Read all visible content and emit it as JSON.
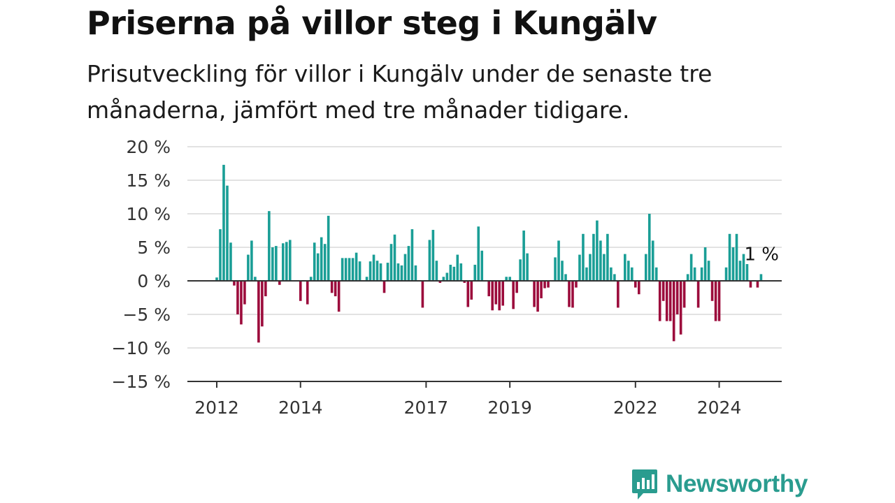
{
  "header": {
    "title": "Priserna på villor steg i Kungälv",
    "subtitle": "Prisutveckling för villor i Kungälv under de senaste tre månaderna, jämfört med tre månader tidigare."
  },
  "colors": {
    "positive": "#1a9e96",
    "negative": "#9c0c3c",
    "grid": "#d9d9d9",
    "axis": "#333333",
    "brand": "#2a9c8f"
  },
  "brand": {
    "name": "Newsworthy",
    "icon": "bar-chart-speech-bubble-icon"
  },
  "chart_data": {
    "type": "bar",
    "title": "Priserna på villor steg i Kungälv",
    "subtitle": "Prisutveckling för villor i Kungälv under de senaste tre månaderna, jämfört med tre månader tidigare.",
    "xlabel": "",
    "ylabel": "",
    "x_start": "2012-01",
    "x_frequency": "monthly",
    "ylim": [
      -15,
      20
    ],
    "y_ticks": [
      20,
      15,
      10,
      5,
      0,
      -5,
      -10,
      -15
    ],
    "y_tick_labels": [
      "20 %",
      "15 %",
      "10 %",
      "5 %",
      "0 %",
      "−5 %",
      "−10 %",
      "−15 %"
    ],
    "x_ticks": [
      "2012",
      "2014",
      "2017",
      "2019",
      "2022",
      "2024"
    ],
    "grid": true,
    "legend": "none",
    "annotation": {
      "text": "1 %",
      "target": "last"
    },
    "values": [
      0.5,
      7.7,
      17.3,
      14.2,
      5.7,
      -0.7,
      -5.0,
      -6.5,
      -3.5,
      3.9,
      6.0,
      0.6,
      -9.2,
      -6.8,
      -2.3,
      10.4,
      5.0,
      5.2,
      -0.6,
      5.6,
      5.8,
      6.1,
      0,
      0,
      -3.0,
      0,
      -3.5,
      0.6,
      5.7,
      4.1,
      6.5,
      5.5,
      9.7,
      -1.8,
      -2.3,
      -4.6,
      3.4,
      3.4,
      3.4,
      3.4,
      4.2,
      2.9,
      0,
      0.6,
      2.9,
      3.9,
      3.0,
      2.6,
      -1.8,
      2.7,
      5.5,
      6.9,
      2.6,
      2.3,
      4.0,
      5.2,
      7.7,
      2.3,
      0,
      -4.0,
      0,
      6.1,
      7.6,
      3.0,
      -0.3,
      0.6,
      1.2,
      2.4,
      2.1,
      3.9,
      2.6,
      -0.3,
      -3.9,
      -2.8,
      2.4,
      8.1,
      4.5,
      0,
      -2.3,
      -4.4,
      -3.5,
      -4.4,
      -3.7,
      0.6,
      0.6,
      -4.2,
      -1.8,
      3.2,
      7.5,
      4.1,
      0,
      -3.9,
      -4.6,
      -2.6,
      -1.1,
      -1.0,
      0,
      3.5,
      6.0,
      3.0,
      1.0,
      -3.9,
      -4.0,
      -1.0,
      3.9,
      7.0,
      2.0,
      4.0,
      7.0,
      9.0,
      6.0,
      4.0,
      7.0,
      2.0,
      1.0,
      -4.0,
      0,
      4.0,
      3.0,
      2.0,
      -1.0,
      -2.0,
      0,
      4.0,
      10.0,
      6.0,
      2.0,
      -6.0,
      -3.0,
      -6.0,
      -6.0,
      -9.0,
      -5.0,
      -8.0,
      -4.0,
      1.0,
      4.0,
      2.0,
      -4.0,
      2.0,
      5.0,
      3.0,
      -3.0,
      -6.0,
      -6.0,
      0,
      2.0,
      7.0,
      5.0,
      7.0,
      3.0,
      4.0,
      2.5,
      -1.0,
      0,
      -1.0,
      1.0
    ]
  }
}
